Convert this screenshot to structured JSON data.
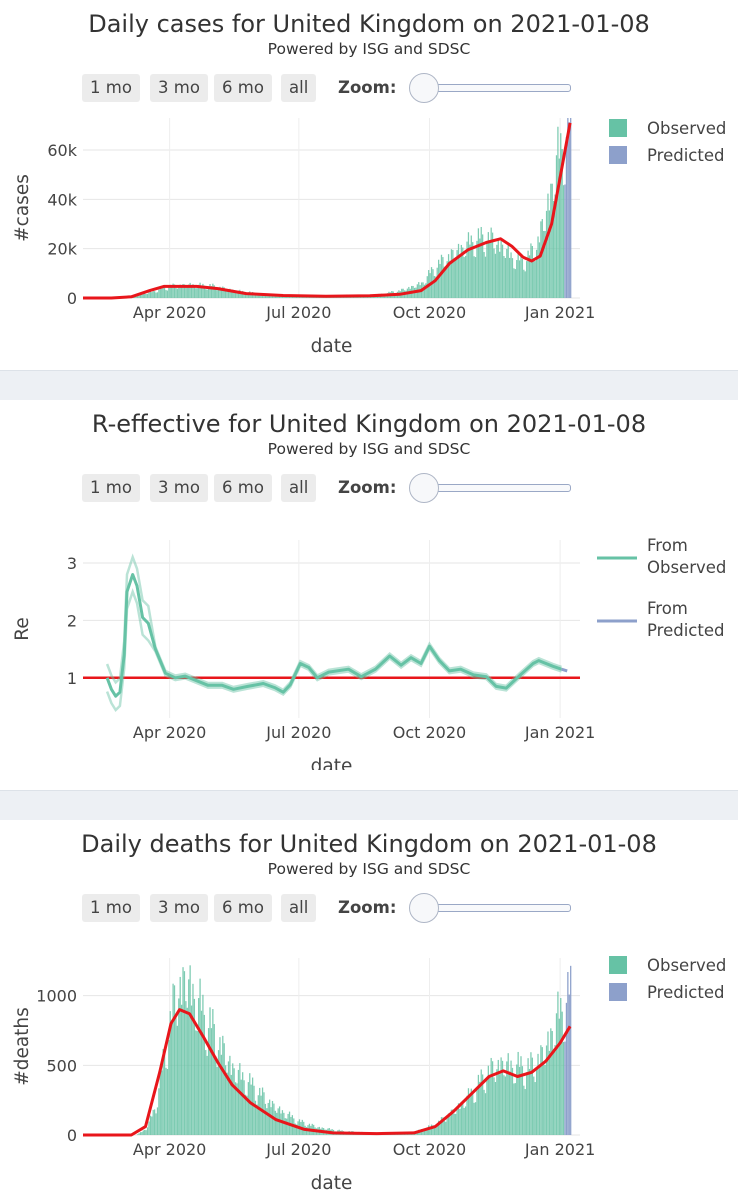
{
  "controls": {
    "buttons": [
      "1 mo",
      "3 mo",
      "6 mo",
      "all"
    ],
    "zoom_label": "Zoom:"
  },
  "colors": {
    "observed": "#66c2a5",
    "predicted": "#8da0cb",
    "fit_line": "#e8161b",
    "separator": "#edf0f4"
  },
  "chart_data": [
    {
      "type": "bar",
      "title": "Daily cases for United Kingdom on 2021-01-08",
      "subtitle": "Powered by ISG and SDSC",
      "xlabel": "date",
      "ylabel": "#cases",
      "x_ticks": [
        "Apr 2020",
        "Jul 2020",
        "Oct 2020",
        "Jan 2021"
      ],
      "xlim": [
        "2020-01-31",
        "2021-01-15"
      ],
      "y_ticks": [
        "0",
        "20k",
        "40k",
        "60k"
      ],
      "y_tick_values": [
        0,
        20000,
        40000,
        60000
      ],
      "ylim": [
        0,
        73000
      ],
      "legend": [
        "Observed",
        "Predicted"
      ],
      "legend_position": "top-right",
      "grid": true,
      "bars": {
        "start": "2020-01-31",
        "end": "2021-01-08",
        "observed_until": "2021-01-03",
        "anchors": [
          [
            "2020-01-31",
            0
          ],
          [
            "2020-03-01",
            50
          ],
          [
            "2020-03-20",
            2500
          ],
          [
            "2020-04-01",
            4500
          ],
          [
            "2020-04-15",
            5000
          ],
          [
            "2020-05-01",
            4500
          ],
          [
            "2020-05-15",
            3000
          ],
          [
            "2020-06-01",
            1700
          ],
          [
            "2020-07-01",
            800
          ],
          [
            "2020-08-01",
            800
          ],
          [
            "2020-08-25",
            1200
          ],
          [
            "2020-09-10",
            2800
          ],
          [
            "2020-09-25",
            5500
          ],
          [
            "2020-10-05",
            12000
          ],
          [
            "2020-10-20",
            18000
          ],
          [
            "2020-11-01",
            22000
          ],
          [
            "2020-11-12",
            23000
          ],
          [
            "2020-11-20",
            20000
          ],
          [
            "2020-12-01",
            14000
          ],
          [
            "2020-12-08",
            15000
          ],
          [
            "2020-12-15",
            20000
          ],
          [
            "2020-12-22",
            33000
          ],
          [
            "2020-12-30",
            54000
          ],
          [
            "2021-01-05",
            62000
          ],
          [
            "2021-01-08",
            68000
          ]
        ]
      },
      "fit_line": [
        [
          "2020-01-31",
          0
        ],
        [
          "2020-02-20",
          0
        ],
        [
          "2020-03-05",
          500
        ],
        [
          "2020-03-18",
          3000
        ],
        [
          "2020-03-28",
          4700
        ],
        [
          "2020-04-20",
          4700
        ],
        [
          "2020-05-05",
          3800
        ],
        [
          "2020-05-25",
          1800
        ],
        [
          "2020-06-20",
          1000
        ],
        [
          "2020-07-20",
          700
        ],
        [
          "2020-08-20",
          900
        ],
        [
          "2020-09-10",
          1500
        ],
        [
          "2020-09-25",
          3000
        ],
        [
          "2020-10-05",
          7000
        ],
        [
          "2020-10-15",
          14000
        ],
        [
          "2020-10-28",
          19500
        ],
        [
          "2020-11-10",
          22500
        ],
        [
          "2020-11-20",
          24000
        ],
        [
          "2020-11-28",
          21000
        ],
        [
          "2020-12-06",
          16500
        ],
        [
          "2020-12-12",
          15000
        ],
        [
          "2020-12-18",
          17000
        ],
        [
          "2020-12-26",
          30000
        ],
        [
          "2021-01-02",
          52000
        ],
        [
          "2021-01-08",
          71000
        ]
      ]
    },
    {
      "type": "line",
      "title": "R-effective for United Kingdom on 2021-01-08",
      "subtitle": "Powered by ISG and SDSC",
      "xlabel": "date",
      "ylabel": "Re",
      "x_ticks": [
        "Apr 2020",
        "Jul 2020",
        "Oct 2020",
        "Jan 2021"
      ],
      "xlim": [
        "2020-01-31",
        "2021-01-15"
      ],
      "y_ticks": [
        "1",
        "2",
        "3"
      ],
      "y_tick_values": [
        1,
        2,
        3
      ],
      "ylim": [
        0.3,
        3.4
      ],
      "legend": [
        "From Observed",
        "From Predicted"
      ],
      "legend_position": "top-right",
      "grid": true,
      "reference_line": 1,
      "observed": [
        [
          "2020-02-17",
          1.0
        ],
        [
          "2020-02-20",
          0.8
        ],
        [
          "2020-02-23",
          0.68
        ],
        [
          "2020-02-26",
          0.75
        ],
        [
          "2020-02-29",
          1.4
        ],
        [
          "2020-03-02",
          2.5
        ],
        [
          "2020-03-06",
          2.8
        ],
        [
          "2020-03-09",
          2.6
        ],
        [
          "2020-03-13",
          2.05
        ],
        [
          "2020-03-17",
          1.95
        ],
        [
          "2020-03-22",
          1.5
        ],
        [
          "2020-03-29",
          1.08
        ],
        [
          "2020-04-05",
          1.0
        ],
        [
          "2020-04-12",
          1.03
        ],
        [
          "2020-04-20",
          0.95
        ],
        [
          "2020-04-28",
          0.87
        ],
        [
          "2020-05-08",
          0.87
        ],
        [
          "2020-05-16",
          0.8
        ],
        [
          "2020-05-26",
          0.85
        ],
        [
          "2020-06-06",
          0.9
        ],
        [
          "2020-06-14",
          0.83
        ],
        [
          "2020-06-20",
          0.75
        ],
        [
          "2020-06-25",
          0.88
        ],
        [
          "2020-07-02",
          1.25
        ],
        [
          "2020-07-08",
          1.18
        ],
        [
          "2020-07-14",
          1.0
        ],
        [
          "2020-07-22",
          1.1
        ],
        [
          "2020-08-05",
          1.15
        ],
        [
          "2020-08-14",
          1.02
        ],
        [
          "2020-08-24",
          1.15
        ],
        [
          "2020-09-03",
          1.38
        ],
        [
          "2020-09-11",
          1.22
        ],
        [
          "2020-09-18",
          1.35
        ],
        [
          "2020-09-25",
          1.25
        ],
        [
          "2020-10-01",
          1.55
        ],
        [
          "2020-10-08",
          1.3
        ],
        [
          "2020-10-15",
          1.12
        ],
        [
          "2020-10-23",
          1.15
        ],
        [
          "2020-11-01",
          1.05
        ],
        [
          "2020-11-10",
          1.02
        ],
        [
          "2020-11-17",
          0.85
        ],
        [
          "2020-11-24",
          0.82
        ],
        [
          "2020-12-04",
          1.05
        ],
        [
          "2020-12-13",
          1.25
        ],
        [
          "2020-12-17",
          1.3
        ],
        [
          "2020-12-27",
          1.2
        ],
        [
          "2021-01-02",
          1.15
        ]
      ],
      "predicted": [
        [
          "2021-01-02",
          1.15
        ],
        [
          "2021-01-06",
          1.12
        ]
      ]
    },
    {
      "type": "bar",
      "title": "Daily deaths for United Kingdom on 2021-01-08",
      "subtitle": "Powered by ISG and SDSC",
      "xlabel": "date",
      "ylabel": "#deaths",
      "x_ticks": [
        "Apr 2020",
        "Jul 2020",
        "Oct 2020",
        "Jan 2021"
      ],
      "xlim": [
        "2020-01-31",
        "2021-01-15"
      ],
      "y_ticks": [
        "0",
        "500",
        "1000"
      ],
      "y_tick_values": [
        0,
        500,
        1000
      ],
      "ylim": [
        0,
        1270
      ],
      "legend": [
        "Observed",
        "Predicted"
      ],
      "legend_position": "top-right",
      "grid": true,
      "bars": {
        "start": "2020-01-31",
        "end": "2021-01-08",
        "observed_until": "2021-01-03",
        "anchors": [
          [
            "2020-01-31",
            0
          ],
          [
            "2020-03-08",
            0
          ],
          [
            "2020-03-15",
            40
          ],
          [
            "2020-03-22",
            200
          ],
          [
            "2020-03-29",
            600
          ],
          [
            "2020-04-05",
            950
          ],
          [
            "2020-04-12",
            1050
          ],
          [
            "2020-04-20",
            900
          ],
          [
            "2020-05-01",
            700
          ],
          [
            "2020-05-15",
            450
          ],
          [
            "2020-06-01",
            300
          ],
          [
            "2020-06-15",
            180
          ],
          [
            "2020-07-01",
            90
          ],
          [
            "2020-07-15",
            50
          ],
          [
            "2020-08-01",
            25
          ],
          [
            "2020-09-01",
            10
          ],
          [
            "2020-09-20",
            20
          ],
          [
            "2020-10-05",
            70
          ],
          [
            "2020-10-20",
            180
          ],
          [
            "2020-11-01",
            300
          ],
          [
            "2020-11-10",
            420
          ],
          [
            "2020-11-20",
            480
          ],
          [
            "2020-12-01",
            460
          ],
          [
            "2020-12-10",
            450
          ],
          [
            "2020-12-20",
            550
          ],
          [
            "2020-12-30",
            800
          ],
          [
            "2021-01-08",
            950
          ]
        ]
      },
      "fit_line": [
        [
          "2020-01-31",
          0
        ],
        [
          "2020-03-05",
          0
        ],
        [
          "2020-03-15",
          60
        ],
        [
          "2020-03-25",
          450
        ],
        [
          "2020-04-02",
          800
        ],
        [
          "2020-04-08",
          900
        ],
        [
          "2020-04-15",
          870
        ],
        [
          "2020-04-25",
          700
        ],
        [
          "2020-05-05",
          520
        ],
        [
          "2020-05-15",
          360
        ],
        [
          "2020-05-28",
          230
        ],
        [
          "2020-06-15",
          110
        ],
        [
          "2020-07-05",
          40
        ],
        [
          "2020-07-25",
          15
        ],
        [
          "2020-08-25",
          10
        ],
        [
          "2020-09-20",
          15
        ],
        [
          "2020-10-05",
          60
        ],
        [
          "2020-10-18",
          170
        ],
        [
          "2020-11-01",
          310
        ],
        [
          "2020-11-12",
          420
        ],
        [
          "2020-11-22",
          460
        ],
        [
          "2020-12-02",
          420
        ],
        [
          "2020-12-12",
          450
        ],
        [
          "2020-12-22",
          530
        ],
        [
          "2021-01-01",
          660
        ],
        [
          "2021-01-08",
          780
        ]
      ]
    }
  ]
}
